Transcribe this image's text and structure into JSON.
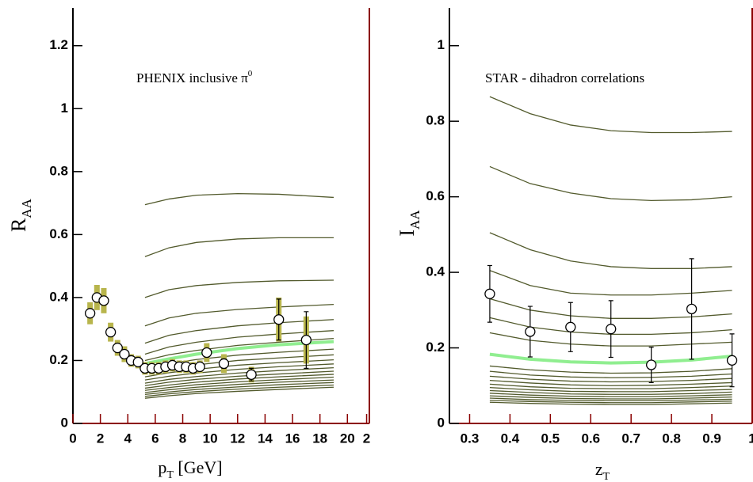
{
  "chart_data": [
    {
      "type": "line",
      "title": [
        "PHENIX inclusive π",
        "0"
      ],
      "xlabel": [
        "p",
        "T",
        " [GeV]"
      ],
      "ylabel": [
        "R",
        "AA"
      ],
      "xlim": [
        0,
        21.6
      ],
      "ylim": [
        0,
        1.32
      ],
      "xticks": [
        0,
        2,
        4,
        6,
        8,
        10,
        12,
        14,
        16,
        18,
        20,
        {
          "value": 21.4,
          "label": "2"
        }
      ],
      "yticks": [
        0,
        0.2,
        0.4,
        0.6,
        0.8,
        1,
        1.2
      ],
      "x": [
        5.25,
        7,
        9,
        12,
        15,
        19
      ],
      "series": [
        {
          "color": "#525a2c",
          "values": [
            0.695,
            0.713,
            0.725,
            0.73,
            0.728,
            0.718
          ]
        },
        {
          "color": "#525a2c",
          "values": [
            0.53,
            0.558,
            0.575,
            0.586,
            0.59,
            0.59
          ]
        },
        {
          "color": "#525a2c",
          "values": [
            0.4,
            0.425,
            0.438,
            0.448,
            0.453,
            0.455
          ]
        },
        {
          "color": "#525a2c",
          "values": [
            0.31,
            0.335,
            0.35,
            0.362,
            0.37,
            0.378
          ]
        },
        {
          "color": "#525a2c",
          "values": [
            0.255,
            0.28,
            0.295,
            0.31,
            0.32,
            0.33
          ]
        },
        {
          "color": "#525a2c",
          "values": [
            0.22,
            0.243,
            0.258,
            0.274,
            0.284,
            0.295
          ]
        },
        {
          "color": "#525a2c",
          "values": [
            0.2,
            0.218,
            0.232,
            0.248,
            0.258,
            0.27
          ]
        },
        {
          "color": "#525a2c",
          "values": [
            0.175,
            0.19,
            0.203,
            0.217,
            0.226,
            0.236
          ]
        },
        {
          "color": "#525a2c",
          "values": [
            0.16,
            0.174,
            0.186,
            0.2,
            0.208,
            0.218
          ]
        },
        {
          "color": "#525a2c",
          "values": [
            0.148,
            0.161,
            0.172,
            0.185,
            0.193,
            0.202
          ]
        },
        {
          "color": "#525a2c",
          "values": [
            0.138,
            0.15,
            0.16,
            0.172,
            0.18,
            0.189
          ]
        },
        {
          "color": "#525a2c",
          "values": [
            0.128,
            0.14,
            0.149,
            0.16,
            0.168,
            0.177
          ]
        },
        {
          "color": "#525a2c",
          "values": [
            0.12,
            0.131,
            0.14,
            0.15,
            0.157,
            0.166
          ]
        },
        {
          "color": "#525a2c",
          "values": [
            0.112,
            0.122,
            0.131,
            0.141,
            0.148,
            0.156
          ]
        },
        {
          "color": "#525a2c",
          "values": [
            0.105,
            0.114,
            0.123,
            0.132,
            0.139,
            0.147
          ]
        },
        {
          "color": "#525a2c",
          "values": [
            0.098,
            0.107,
            0.115,
            0.124,
            0.131,
            0.138
          ]
        },
        {
          "color": "#525a2c",
          "values": [
            0.092,
            0.1,
            0.108,
            0.116,
            0.123,
            0.13
          ]
        },
        {
          "color": "#525a2c",
          "values": [
            0.086,
            0.094,
            0.101,
            0.109,
            0.115,
            0.122
          ]
        },
        {
          "color": "#525a2c",
          "values": [
            0.08,
            0.088,
            0.095,
            0.102,
            0.108,
            0.115
          ]
        },
        {
          "color": "#90ee90",
          "values": [
            0.19,
            0.205,
            0.22,
            0.238,
            0.25,
            0.26
          ]
        }
      ],
      "points": {
        "x": [
          1.25,
          1.75,
          2.25,
          2.75,
          3.25,
          3.75,
          4.25,
          4.75,
          5.25,
          5.75,
          6.25,
          6.75,
          7.25,
          7.75,
          8.25,
          8.75,
          9.25,
          9.75,
          11,
          13,
          15,
          17
        ],
        "values": [
          0.35,
          0.4,
          0.39,
          0.29,
          0.24,
          0.22,
          0.2,
          0.195,
          0.175,
          0.175,
          0.175,
          0.18,
          0.185,
          0.18,
          0.18,
          0.175,
          0.18,
          0.225,
          0.19,
          0.155,
          0.33,
          0.265
        ],
        "sys_errors": [
          0.035,
          0.04,
          0.04,
          0.03,
          0.025,
          0.025,
          0.02,
          0.02,
          0.02,
          0.02,
          0.02,
          0.02,
          0.02,
          0.02,
          0.02,
          0.02,
          0.02,
          0.03,
          0.03,
          0.025,
          0.07,
          0.075
        ],
        "stat_errors": [
          0.005,
          0.005,
          0.005,
          0.005,
          0.005,
          0.005,
          0.005,
          0.005,
          0.005,
          0.005,
          0.005,
          0.005,
          0.005,
          0.005,
          0.005,
          0.005,
          0.005,
          0.01,
          0.015,
          0.02,
          0.065,
          0.09
        ],
        "sys_color": "#b8b54c"
      }
    },
    {
      "type": "line",
      "title": [
        "STAR - dihadron correlations"
      ],
      "xlabel": [
        "z",
        "T"
      ],
      "ylabel": [
        "I",
        "AA"
      ],
      "xlim": [
        0.25,
        1.0
      ],
      "ylim": [
        0,
        1.1
      ],
      "xticks": [
        0.3,
        0.4,
        0.5,
        0.6,
        0.7,
        0.8,
        0.9,
        1
      ],
      "yticks": [
        0,
        0.2,
        0.4,
        0.6,
        0.8,
        1
      ],
      "x": [
        0.35,
        0.45,
        0.55,
        0.65,
        0.75,
        0.85,
        0.95
      ],
      "series": [
        {
          "color": "#525a2c",
          "values": [
            0.865,
            0.82,
            0.79,
            0.775,
            0.77,
            0.77,
            0.773
          ]
        },
        {
          "color": "#525a2c",
          "values": [
            0.68,
            0.635,
            0.61,
            0.595,
            0.59,
            0.592,
            0.6
          ]
        },
        {
          "color": "#525a2c",
          "values": [
            0.505,
            0.46,
            0.43,
            0.415,
            0.41,
            0.41,
            0.415
          ]
        },
        {
          "color": "#525a2c",
          "values": [
            0.405,
            0.365,
            0.345,
            0.34,
            0.34,
            0.345,
            0.352
          ]
        },
        {
          "color": "#525a2c",
          "values": [
            0.33,
            0.3,
            0.285,
            0.278,
            0.278,
            0.282,
            0.29
          ]
        },
        {
          "color": "#525a2c",
          "values": [
            0.28,
            0.255,
            0.242,
            0.236,
            0.236,
            0.24,
            0.248
          ]
        },
        {
          "color": "#525a2c",
          "values": [
            0.24,
            0.22,
            0.21,
            0.205,
            0.205,
            0.21,
            0.215
          ]
        },
        {
          "color": "#525a2c",
          "values": [
            0.152,
            0.142,
            0.136,
            0.133,
            0.134,
            0.138,
            0.145
          ]
        },
        {
          "color": "#525a2c",
          "values": [
            0.138,
            0.128,
            0.123,
            0.121,
            0.122,
            0.125,
            0.131
          ]
        },
        {
          "color": "#525a2c",
          "values": [
            0.125,
            0.117,
            0.112,
            0.11,
            0.111,
            0.114,
            0.119
          ]
        },
        {
          "color": "#525a2c",
          "values": [
            0.114,
            0.107,
            0.102,
            0.1,
            0.101,
            0.104,
            0.108
          ]
        },
        {
          "color": "#525a2c",
          "values": [
            0.104,
            0.097,
            0.093,
            0.092,
            0.092,
            0.095,
            0.099
          ]
        },
        {
          "color": "#525a2c",
          "values": [
            0.095,
            0.089,
            0.085,
            0.084,
            0.084,
            0.087,
            0.09
          ]
        },
        {
          "color": "#525a2c",
          "values": [
            0.087,
            0.082,
            0.078,
            0.077,
            0.077,
            0.079,
            0.083
          ]
        },
        {
          "color": "#525a2c",
          "values": [
            0.08,
            0.075,
            0.072,
            0.071,
            0.071,
            0.073,
            0.076
          ]
        },
        {
          "color": "#525a2c",
          "values": [
            0.073,
            0.069,
            0.066,
            0.065,
            0.065,
            0.067,
            0.07
          ]
        },
        {
          "color": "#525a2c",
          "values": [
            0.067,
            0.063,
            0.061,
            0.06,
            0.06,
            0.062,
            0.064
          ]
        },
        {
          "color": "#525a2c",
          "values": [
            0.061,
            0.058,
            0.056,
            0.055,
            0.055,
            0.057,
            0.059
          ]
        },
        {
          "color": "#525a2c",
          "values": [
            0.056,
            0.053,
            0.051,
            0.05,
            0.05,
            0.052,
            0.054
          ]
        },
        {
          "color": "#90ee90",
          "values": [
            0.183,
            0.17,
            0.163,
            0.16,
            0.162,
            0.168,
            0.178
          ]
        }
      ],
      "points": {
        "x": [
          0.35,
          0.45,
          0.55,
          0.65,
          0.75,
          0.85,
          0.95
        ],
        "values": [
          0.343,
          0.243,
          0.255,
          0.25,
          0.155,
          0.303,
          0.167
        ],
        "stat_errors": [
          0.075,
          0.067,
          0.065,
          0.075,
          0.047,
          0.133,
          0.07
        ]
      }
    }
  ]
}
